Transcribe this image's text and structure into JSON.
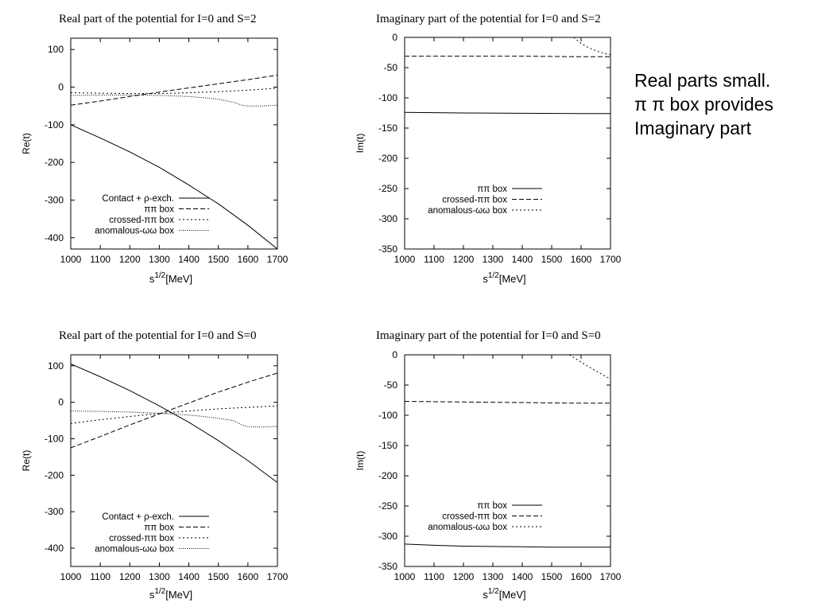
{
  "note": {
    "lines": [
      "Real parts small.",
      "π π box provides",
      "Imaginary part"
    ]
  },
  "chart_data": [
    {
      "type": "line",
      "title": "Real part of the potential for I=0 and S=2",
      "xlabel_base": "s",
      "xlabel_sup": "1/2",
      "xlabel_unit": "[MeV]",
      "ylabel": "Re(t)",
      "xlim": [
        1000,
        1700
      ],
      "ylim": [
        -430,
        130
      ],
      "xticks": [
        1000,
        1100,
        1200,
        1300,
        1400,
        1500,
        1600,
        1700
      ],
      "yticks": [
        100,
        0,
        -100,
        -200,
        -300,
        -400
      ],
      "legend_position": "bottom-left",
      "series": [
        {
          "name": "Contact + ρ-exch.",
          "style": "solid",
          "x": [
            1000,
            1100,
            1200,
            1300,
            1400,
            1500,
            1600,
            1700
          ],
          "y": [
            -100,
            -135,
            -172,
            -213,
            -260,
            -310,
            -367,
            -430
          ]
        },
        {
          "name": "ππ box",
          "style": "dashed",
          "x": [
            1000,
            1100,
            1200,
            1300,
            1400,
            1500,
            1600,
            1700
          ],
          "y": [
            -48,
            -37,
            -25,
            -13,
            -2,
            9,
            20,
            32
          ]
        },
        {
          "name": "crossed-ππ box",
          "style": "dotted",
          "x": [
            1000,
            1100,
            1200,
            1300,
            1400,
            1500,
            1600,
            1700
          ],
          "y": [
            -15,
            -16,
            -17,
            -17,
            -15,
            -12,
            -8,
            -3
          ]
        },
        {
          "name": "anomalous-ωω box",
          "style": "fine-dotted",
          "x": [
            1000,
            1100,
            1200,
            1300,
            1400,
            1450,
            1500,
            1550,
            1580,
            1600,
            1650,
            1700
          ],
          "y": [
            -22,
            -21,
            -21,
            -22,
            -25,
            -28,
            -32,
            -40,
            -48,
            -50,
            -50,
            -48
          ]
        }
      ]
    },
    {
      "type": "line",
      "title": "Imaginary part of the potential for I=0 and S=2",
      "xlabel_base": "s",
      "xlabel_sup": "1/2",
      "xlabel_unit": "[MeV]",
      "ylabel": "Im(t)",
      "xlim": [
        1000,
        1700
      ],
      "ylim": [
        -350,
        0
      ],
      "xticks": [
        1000,
        1100,
        1200,
        1300,
        1400,
        1500,
        1600,
        1700
      ],
      "yticks": [
        0,
        -50,
        -100,
        -150,
        -200,
        -250,
        -300,
        -350
      ],
      "legend_position": "center-right",
      "series": [
        {
          "name": "ππ box",
          "style": "solid",
          "x": [
            1000,
            1200,
            1400,
            1600,
            1700
          ],
          "y": [
            -124,
            -125,
            -125.5,
            -126,
            -126
          ]
        },
        {
          "name": "crossed-ππ box",
          "style": "dashed",
          "x": [
            1000,
            1200,
            1400,
            1600,
            1700
          ],
          "y": [
            -31,
            -31,
            -31,
            -32,
            -32
          ]
        },
        {
          "name": "anomalous-ωω box",
          "style": "dotted",
          "x": [
            1575,
            1600,
            1625,
            1650,
            1675,
            1700
          ],
          "y": [
            0,
            -10,
            -17,
            -22,
            -26,
            -29
          ]
        }
      ]
    },
    {
      "type": "line",
      "title": "Real part of the potential for I=0 and S=0",
      "xlabel_base": "s",
      "xlabel_sup": "1/2",
      "xlabel_unit": "[MeV]",
      "ylabel": "Re(t)",
      "xlim": [
        1000,
        1700
      ],
      "ylim": [
        -450,
        130
      ],
      "xticks": [
        1000,
        1100,
        1200,
        1300,
        1400,
        1500,
        1600,
        1700
      ],
      "yticks": [
        100,
        0,
        -100,
        -200,
        -300,
        -400
      ],
      "legend_position": "bottom-left",
      "series": [
        {
          "name": "Contact + ρ-exch.",
          "style": "solid",
          "x": [
            1000,
            1100,
            1200,
            1300,
            1400,
            1500,
            1600,
            1700
          ],
          "y": [
            105,
            70,
            32,
            -10,
            -55,
            -105,
            -160,
            -220
          ]
        },
        {
          "name": "ππ box",
          "style": "dashed",
          "x": [
            1000,
            1100,
            1200,
            1300,
            1400,
            1500,
            1600,
            1700
          ],
          "y": [
            -125,
            -94,
            -62,
            -32,
            -2,
            28,
            55,
            80
          ]
        },
        {
          "name": "crossed-ππ box",
          "style": "dotted",
          "x": [
            1000,
            1100,
            1200,
            1300,
            1400,
            1500,
            1600,
            1700
          ],
          "y": [
            -58,
            -48,
            -39,
            -31,
            -24,
            -18,
            -14,
            -10
          ]
        },
        {
          "name": "anomalous-ωω box",
          "style": "fine-dotted",
          "x": [
            1000,
            1100,
            1200,
            1300,
            1400,
            1450,
            1500,
            1550,
            1580,
            1600,
            1650,
            1700
          ],
          "y": [
            -24,
            -25,
            -27,
            -30,
            -35,
            -39,
            -44,
            -50,
            -62,
            -67,
            -68,
            -66
          ]
        }
      ]
    },
    {
      "type": "line",
      "title": "Imaginary part of the potential for I=0 and S=0",
      "xlabel_base": "s",
      "xlabel_sup": "1/2",
      "xlabel_unit": "[MeV]",
      "ylabel": "Im(t)",
      "xlim": [
        1000,
        1700
      ],
      "ylim": [
        -350,
        0
      ],
      "xticks": [
        1000,
        1100,
        1200,
        1300,
        1400,
        1500,
        1600,
        1700
      ],
      "yticks": [
        0,
        -50,
        -100,
        -150,
        -200,
        -250,
        -300,
        -350
      ],
      "legend_position": "bottom-right",
      "series": [
        {
          "name": "ππ box",
          "style": "solid",
          "x": [
            1000,
            1100,
            1200,
            1300,
            1400,
            1500,
            1600,
            1700
          ],
          "y": [
            -313,
            -315,
            -316.5,
            -317,
            -317.5,
            -318,
            -318,
            -318
          ]
        },
        {
          "name": "crossed-ππ box",
          "style": "dashed",
          "x": [
            1000,
            1200,
            1400,
            1600,
            1700
          ],
          "y": [
            -77,
            -78,
            -79,
            -80,
            -80
          ]
        },
        {
          "name": "anomalous-ωω box",
          "style": "dotted",
          "x": [
            1560,
            1600,
            1640,
            1670,
            1700
          ],
          "y": [
            0,
            -12,
            -24,
            -32,
            -40
          ]
        }
      ]
    }
  ]
}
